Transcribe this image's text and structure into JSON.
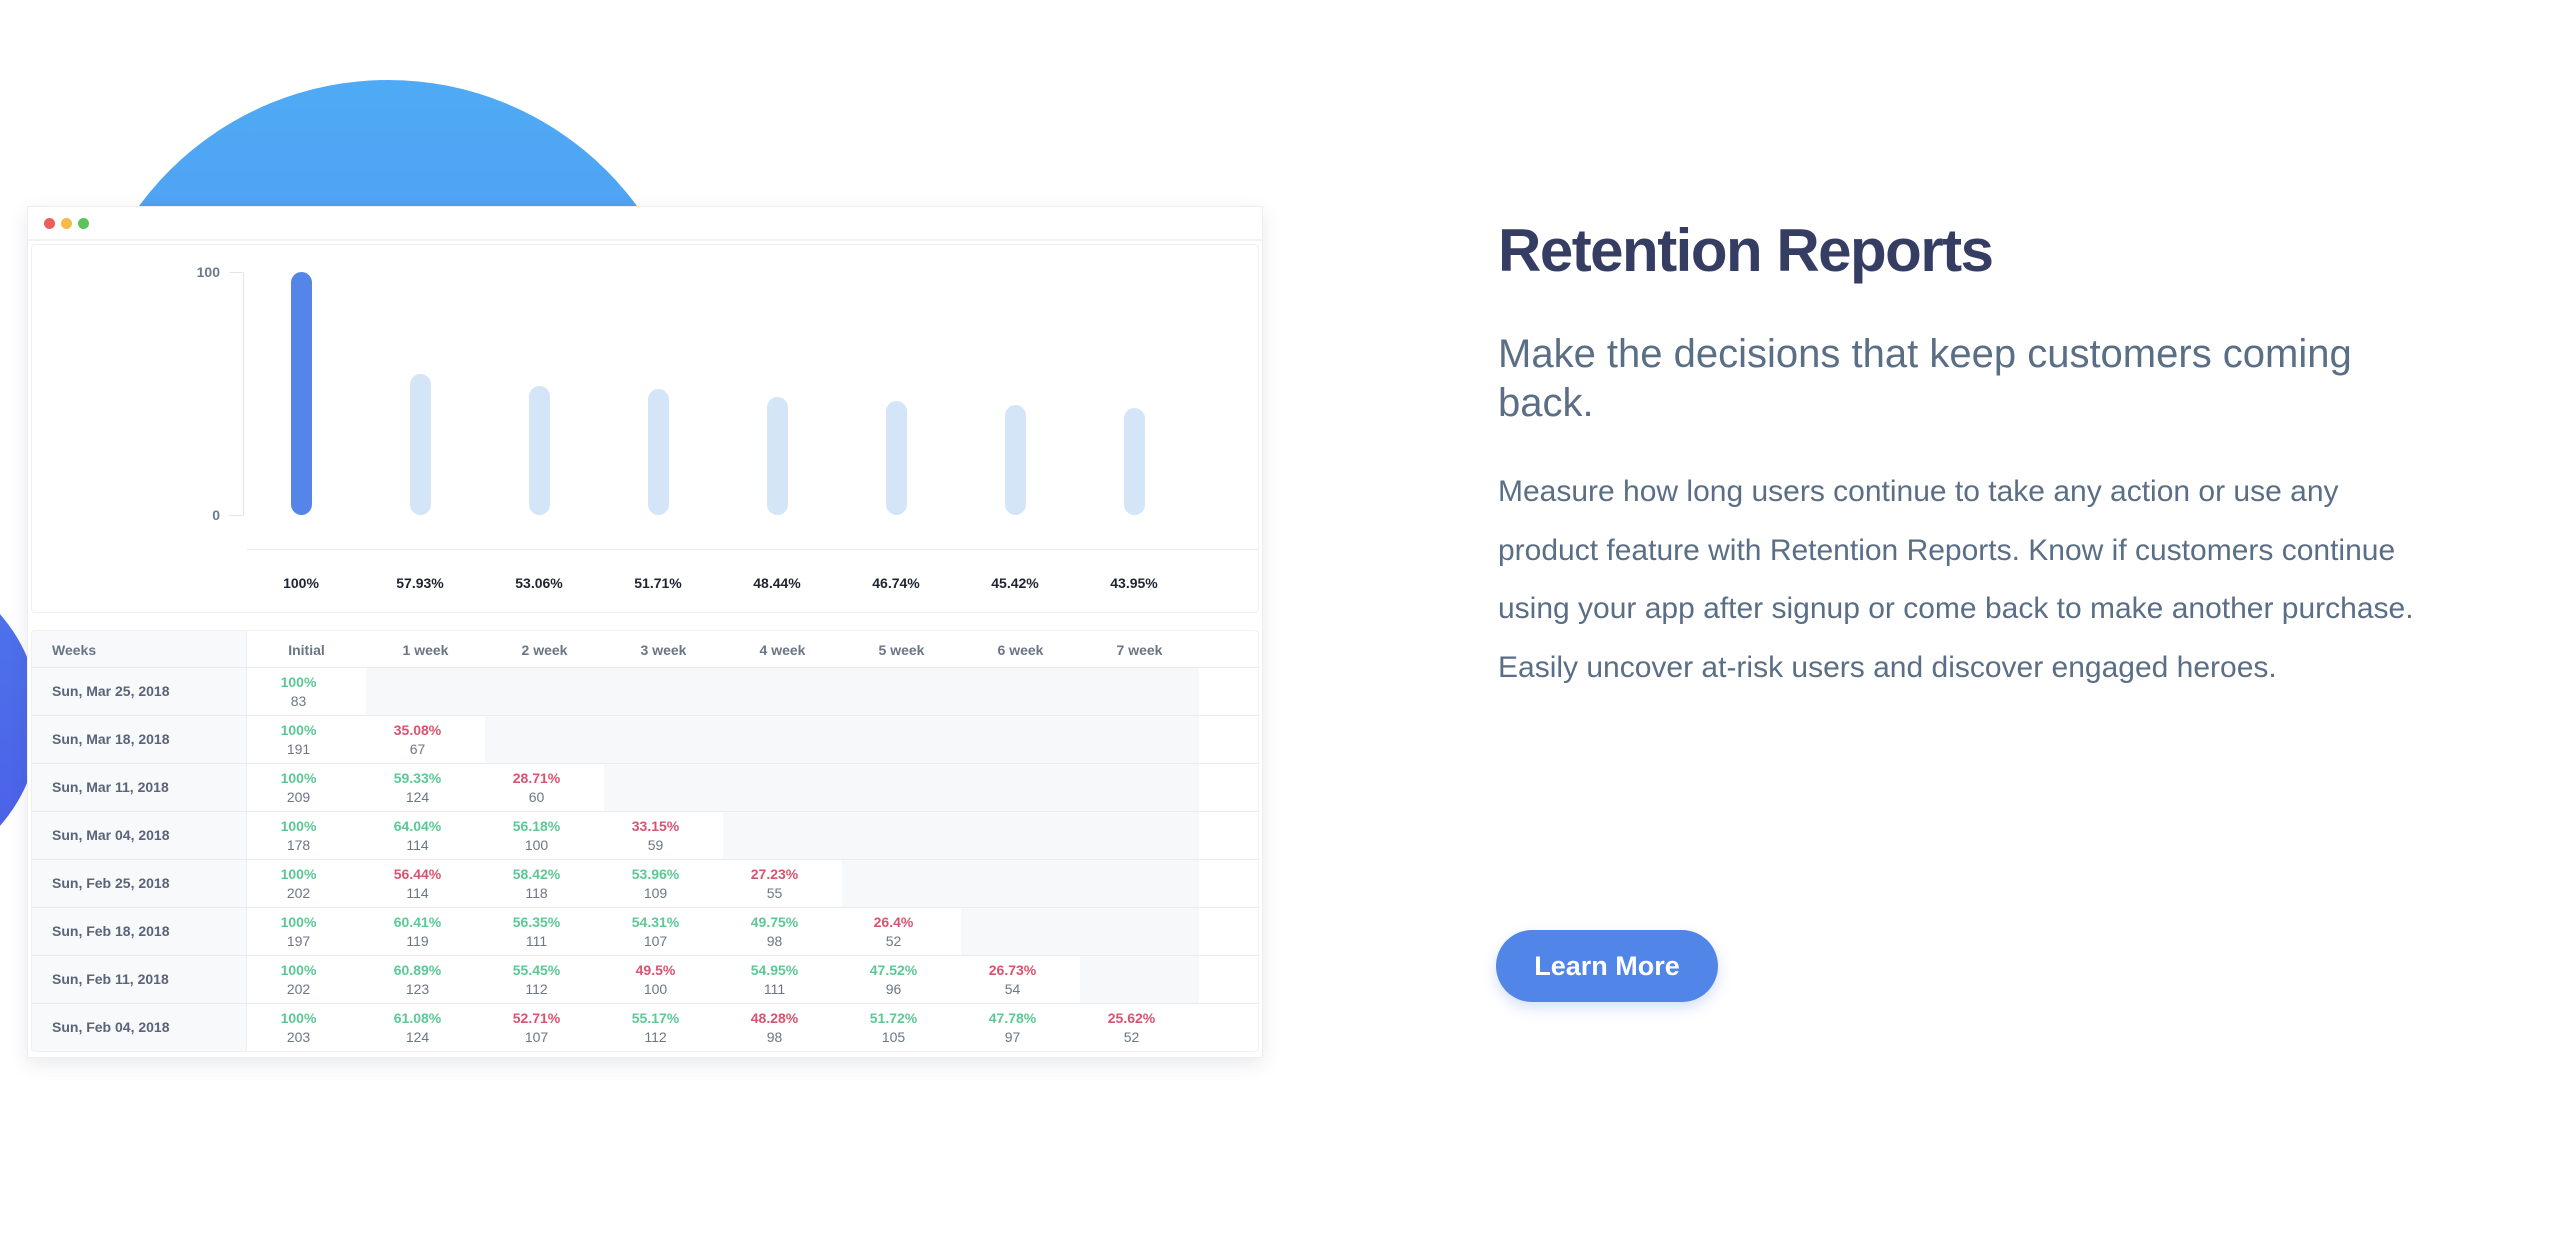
{
  "hero": {
    "title": "Retention Reports",
    "subtitle": "Make the decisions that keep customers coming back.",
    "body": "Measure how long users continue to take any action or use any product feature with Retention Reports. Know if customers continue using your app after signup or come back to make another purchase. Easily uncover at-risk users and discover engaged heroes.",
    "cta_label": "Learn More"
  },
  "colors": {
    "primary": "#5285e8",
    "bar_primary": "#5585e8",
    "bar_secondary": "#d4e5f8",
    "good": "#5cc995",
    "bad": "#d9536f",
    "heading": "#363d63",
    "text": "#5a6e85"
  },
  "window": {
    "controls": [
      "close",
      "minimize",
      "maximize"
    ]
  },
  "chart_data": {
    "type": "bar",
    "title": "",
    "xlabel": "",
    "ylabel": "",
    "ylim": [
      0,
      100
    ],
    "yticks": [
      "100",
      "0"
    ],
    "categories": [
      "Initial",
      "1 week",
      "2 week",
      "3 week",
      "4 week",
      "5 week",
      "6 week",
      "7 week"
    ],
    "values": [
      100,
      57.93,
      53.06,
      51.71,
      48.44,
      46.74,
      45.42,
      43.95
    ],
    "value_labels": [
      "100%",
      "57.93%",
      "53.06%",
      "51.71%",
      "48.44%",
      "46.74%",
      "45.42%",
      "43.95%"
    ],
    "grid": false,
    "legend": null
  },
  "table": {
    "headers": [
      "Weeks",
      "Initial",
      "1 week",
      "2 week",
      "3 week",
      "4 week",
      "5 week",
      "6 week",
      "7 week"
    ],
    "rows": [
      {
        "date": "Sun, Mar 25, 2018",
        "cells": [
          {
            "pct": "100%",
            "n": "83",
            "status": "good"
          }
        ]
      },
      {
        "date": "Sun, Mar 18, 2018",
        "cells": [
          {
            "pct": "100%",
            "n": "191",
            "status": "good"
          },
          {
            "pct": "35.08%",
            "n": "67",
            "status": "bad"
          }
        ]
      },
      {
        "date": "Sun, Mar 11, 2018",
        "cells": [
          {
            "pct": "100%",
            "n": "209",
            "status": "good"
          },
          {
            "pct": "59.33%",
            "n": "124",
            "status": "good"
          },
          {
            "pct": "28.71%",
            "n": "60",
            "status": "bad"
          }
        ]
      },
      {
        "date": "Sun, Mar 04, 2018",
        "cells": [
          {
            "pct": "100%",
            "n": "178",
            "status": "good"
          },
          {
            "pct": "64.04%",
            "n": "114",
            "status": "good"
          },
          {
            "pct": "56.18%",
            "n": "100",
            "status": "good"
          },
          {
            "pct": "33.15%",
            "n": "59",
            "status": "bad"
          }
        ]
      },
      {
        "date": "Sun, Feb 25, 2018",
        "cells": [
          {
            "pct": "100%",
            "n": "202",
            "status": "good"
          },
          {
            "pct": "56.44%",
            "n": "114",
            "status": "bad"
          },
          {
            "pct": "58.42%",
            "n": "118",
            "status": "good"
          },
          {
            "pct": "53.96%",
            "n": "109",
            "status": "good"
          },
          {
            "pct": "27.23%",
            "n": "55",
            "status": "bad"
          }
        ]
      },
      {
        "date": "Sun, Feb 18, 2018",
        "cells": [
          {
            "pct": "100%",
            "n": "197",
            "status": "good"
          },
          {
            "pct": "60.41%",
            "n": "119",
            "status": "good"
          },
          {
            "pct": "56.35%",
            "n": "111",
            "status": "good"
          },
          {
            "pct": "54.31%",
            "n": "107",
            "status": "good"
          },
          {
            "pct": "49.75%",
            "n": "98",
            "status": "good"
          },
          {
            "pct": "26.4%",
            "n": "52",
            "status": "bad"
          }
        ]
      },
      {
        "date": "Sun, Feb 11, 2018",
        "cells": [
          {
            "pct": "100%",
            "n": "202",
            "status": "good"
          },
          {
            "pct": "60.89%",
            "n": "123",
            "status": "good"
          },
          {
            "pct": "55.45%",
            "n": "112",
            "status": "good"
          },
          {
            "pct": "49.5%",
            "n": "100",
            "status": "bad"
          },
          {
            "pct": "54.95%",
            "n": "111",
            "status": "good"
          },
          {
            "pct": "47.52%",
            "n": "96",
            "status": "good"
          },
          {
            "pct": "26.73%",
            "n": "54",
            "status": "bad"
          }
        ]
      },
      {
        "date": "Sun, Feb 04, 2018",
        "cells": [
          {
            "pct": "100%",
            "n": "203",
            "status": "good"
          },
          {
            "pct": "61.08%",
            "n": "124",
            "status": "good"
          },
          {
            "pct": "52.71%",
            "n": "107",
            "status": "bad"
          },
          {
            "pct": "55.17%",
            "n": "112",
            "status": "good"
          },
          {
            "pct": "48.28%",
            "n": "98",
            "status": "bad"
          },
          {
            "pct": "51.72%",
            "n": "105",
            "status": "good"
          },
          {
            "pct": "47.78%",
            "n": "97",
            "status": "good"
          },
          {
            "pct": "25.62%",
            "n": "52",
            "status": "bad"
          }
        ]
      }
    ]
  }
}
